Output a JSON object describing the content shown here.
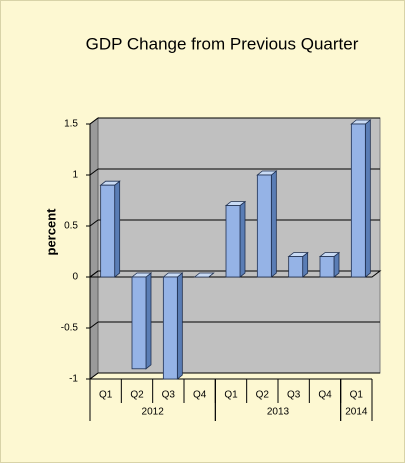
{
  "chart_data": {
    "type": "bar3d",
    "title": "GDP Change from Previous Quarter",
    "y_axis_label": "percent",
    "categories": [
      "Q1",
      "Q2",
      "Q3",
      "Q4",
      "Q1",
      "Q2",
      "Q3",
      "Q4",
      "Q1"
    ],
    "group_labels": [
      "2012",
      "2013",
      "2014"
    ],
    "group_sizes": [
      4,
      4,
      1
    ],
    "values": [
      0.9,
      -0.9,
      -1.0,
      0.0,
      0.7,
      1.0,
      0.2,
      0.2,
      1.5
    ],
    "color": "#95b3e6",
    "ylim": [
      -1,
      1.5
    ],
    "yticks": [
      -1,
      -0.5,
      0,
      0.5,
      1,
      1.5
    ],
    "grid": true
  }
}
